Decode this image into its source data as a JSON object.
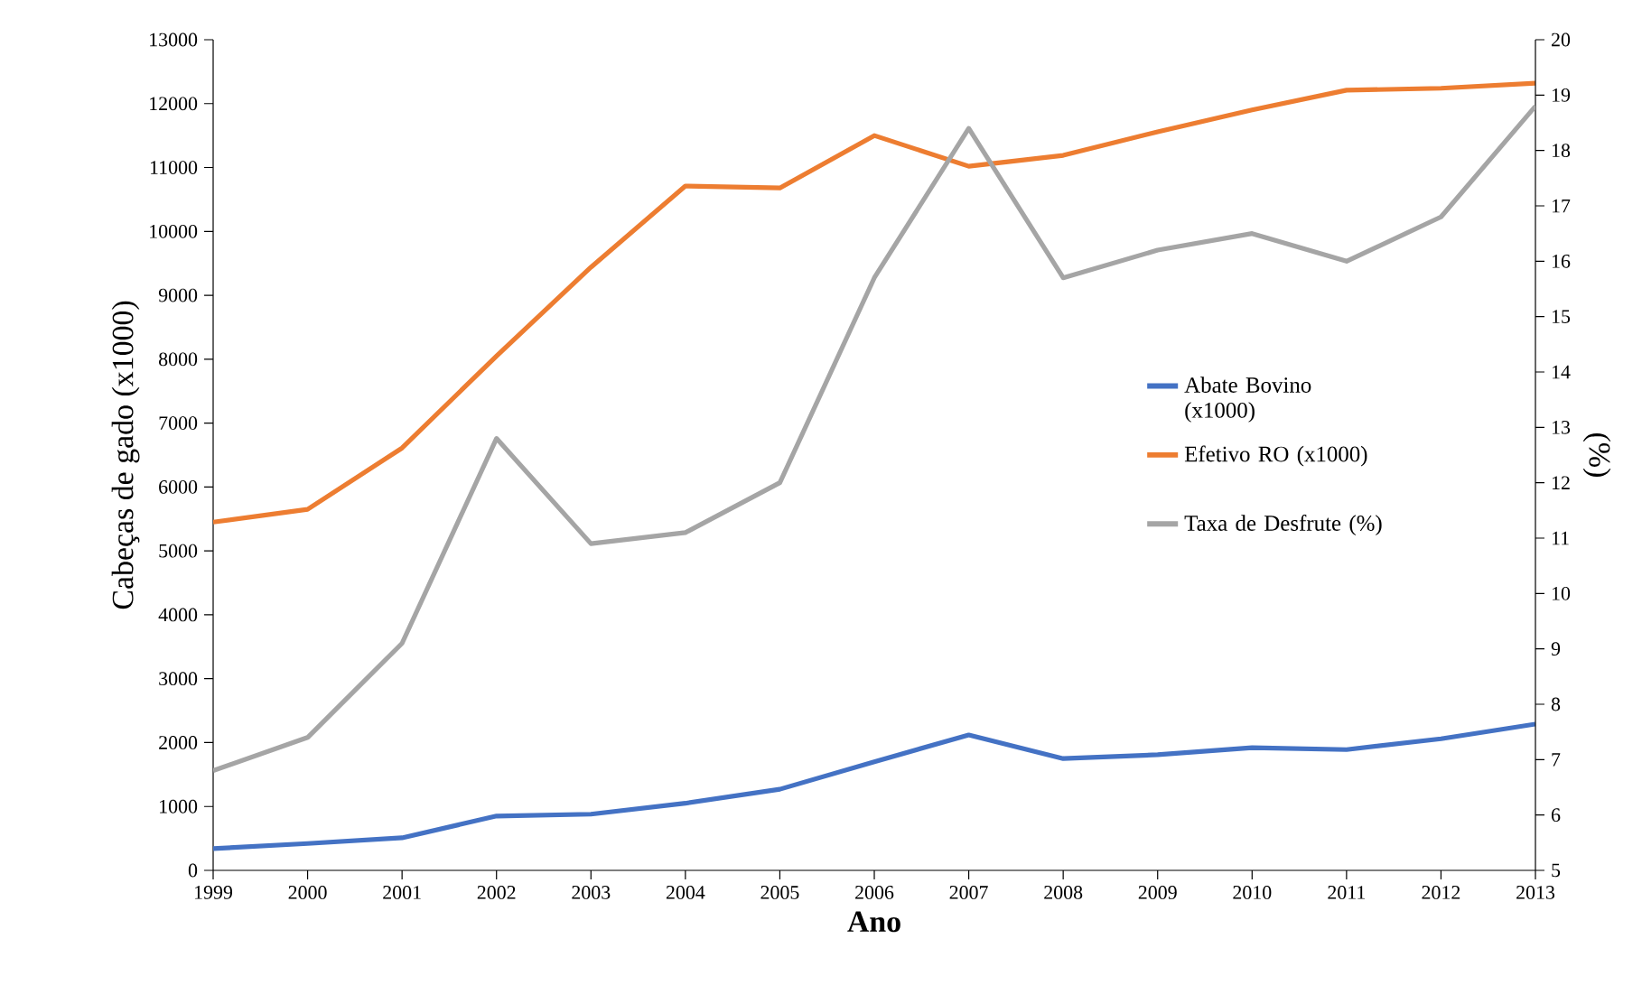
{
  "chart_data": {
    "type": "line",
    "xlabel": "Ano",
    "ylabel": "Cabeças de gado (x1000)",
    "y2label": "(%)",
    "x": [
      1999,
      2000,
      2001,
      2002,
      2003,
      2004,
      2005,
      2006,
      2007,
      2008,
      2009,
      2010,
      2011,
      2012,
      2013
    ],
    "series": [
      {
        "name": "Abate Bovino (x1000)",
        "color": "#4472c4",
        "values": [
          340,
          420,
          510,
          850,
          880,
          1050,
          1270,
          1700,
          2120,
          1750,
          1810,
          1920,
          1890,
          2060,
          2290
        ]
      },
      {
        "name": "Efetivo RO (x1000)",
        "color": "#ed7d31",
        "values": [
          5450,
          5650,
          6610,
          8050,
          9440,
          10710,
          10680,
          11500,
          11020,
          11190,
          11560,
          11900,
          12210,
          12240,
          12320
        ]
      },
      {
        "name": "Taxa de Desfrute (%)",
        "color": "#a5a5a5",
        "axis": "y2",
        "values": [
          6.8,
          7.4,
          9.1,
          12.8,
          10.9,
          11.1,
          12.0,
          15.7,
          18.4,
          15.7,
          16.2,
          16.5,
          16.0,
          16.8,
          18.8
        ]
      }
    ],
    "xlim": [
      1999,
      2013
    ],
    "xticks": [
      1999,
      2000,
      2001,
      2002,
      2003,
      2004,
      2005,
      2006,
      2007,
      2008,
      2009,
      2010,
      2011,
      2012,
      2013
    ],
    "ylim": [
      0,
      13000
    ],
    "yticks": [
      0,
      1000,
      2000,
      3000,
      4000,
      5000,
      6000,
      7000,
      8000,
      9000,
      10000,
      11000,
      12000,
      13000
    ],
    "y2lim": [
      5,
      20
    ],
    "y2ticks": [
      5,
      6,
      7,
      8,
      9,
      10,
      11,
      12,
      13,
      14,
      15,
      16,
      17,
      18,
      19,
      20
    ],
    "grid": false,
    "legend": "right",
    "marker": "none",
    "line_style": "solid"
  }
}
